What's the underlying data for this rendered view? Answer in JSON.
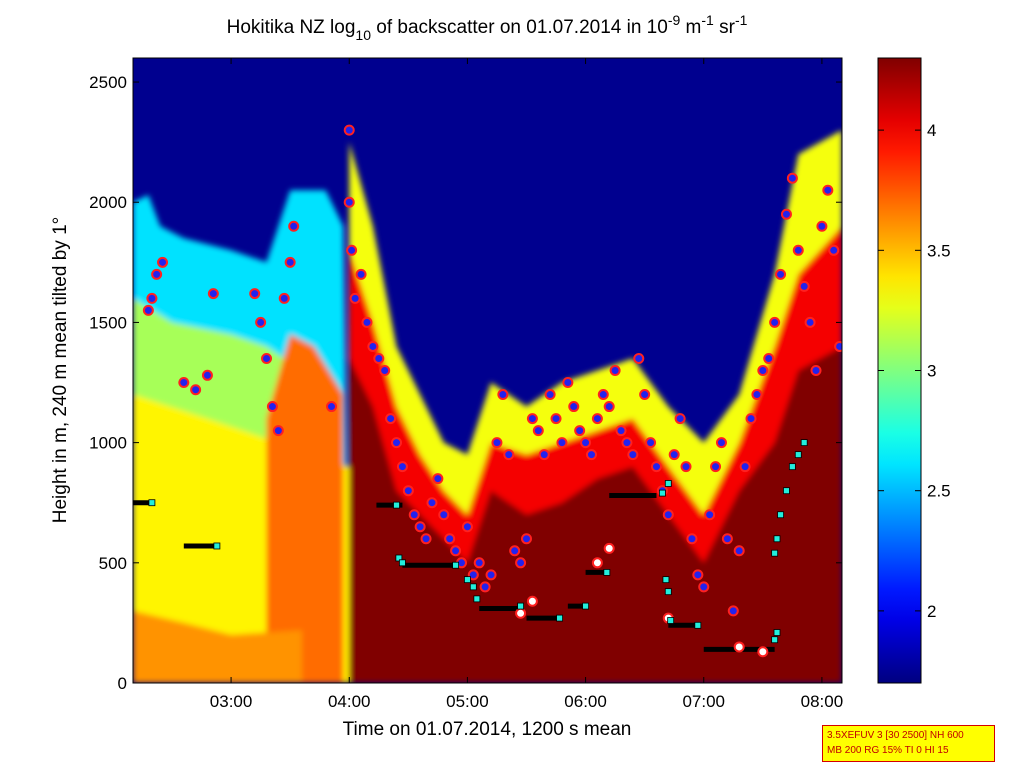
{
  "chart_data": {
    "type": "heatmap",
    "title_parts": {
      "pre": "Hokitika NZ log",
      "sub": "10",
      "mid": " of backscatter on 01.07.2014 in 10",
      "sup1": "-9",
      "unit1": " m",
      "sup2": "-1",
      "unit2": " sr",
      "sup3": "-1"
    },
    "xlabel": "Time on 01.07.2014, 1200 s mean",
    "ylabel": "Height in m, 240 m mean tilted by 1°",
    "xlim_hours": [
      2.17,
      8.17
    ],
    "ylim": [
      0,
      2600
    ],
    "x_ticks": [
      {
        "t": 3,
        "label": "03:00"
      },
      {
        "t": 4,
        "label": "04:00"
      },
      {
        "t": 5,
        "label": "05:00"
      },
      {
        "t": 6,
        "label": "06:00"
      },
      {
        "t": 7,
        "label": "07:00"
      },
      {
        "t": 8,
        "label": "08:00"
      }
    ],
    "y_ticks": [
      {
        "v": 0,
        "label": "0"
      },
      {
        "v": 500,
        "label": "500"
      },
      {
        "v": 1000,
        "label": "1000"
      },
      {
        "v": 1500,
        "label": "1500"
      },
      {
        "v": 2000,
        "label": "2000"
      },
      {
        "v": 2500,
        "label": "2500"
      }
    ],
    "colorbar": {
      "range": [
        1.7,
        4.3
      ],
      "ticks": [
        {
          "v": 2,
          "label": "2"
        },
        {
          "v": 2.5,
          "label": "2.5"
        },
        {
          "v": 3,
          "label": "3"
        },
        {
          "v": 3.5,
          "label": "3.5"
        },
        {
          "v": 4,
          "label": "4"
        }
      ],
      "colormap": "jet"
    },
    "field_regions": [
      {
        "name": "top-background",
        "value": 1.7
      },
      {
        "name": "upper-layer-left",
        "t": [
          2.17,
          4.0
        ],
        "h_top": 1900,
        "value": 2.8
      },
      {
        "name": "lower-layer-left",
        "t": [
          2.17,
          4.0
        ],
        "h_top": 1300,
        "value": 3.3
      },
      {
        "name": "boundary-layer-right",
        "t": [
          4.0,
          8.17
        ],
        "value": 4.3
      }
    ],
    "cloud_base_points": [
      [
        2.3,
        1550
      ],
      [
        2.33,
        1600
      ],
      [
        2.37,
        1700
      ],
      [
        2.42,
        1750
      ],
      [
        2.6,
        1250
      ],
      [
        2.7,
        1220
      ],
      [
        2.8,
        1280
      ],
      [
        2.85,
        1620
      ],
      [
        3.2,
        1620
      ],
      [
        3.25,
        1500
      ],
      [
        3.3,
        1350
      ],
      [
        3.35,
        1150
      ],
      [
        3.4,
        1050
      ],
      [
        3.45,
        1600
      ],
      [
        3.5,
        1750
      ],
      [
        3.53,
        1900
      ],
      [
        3.85,
        1150
      ],
      [
        4.0,
        2300
      ],
      [
        4.0,
        2000
      ],
      [
        4.02,
        1800
      ],
      [
        4.05,
        1600
      ],
      [
        4.1,
        1700
      ],
      [
        4.15,
        1500
      ],
      [
        4.2,
        1400
      ],
      [
        4.25,
        1350
      ],
      [
        4.3,
        1300
      ],
      [
        4.35,
        1100
      ],
      [
        4.4,
        1000
      ],
      [
        4.45,
        900
      ],
      [
        4.5,
        800
      ],
      [
        4.55,
        700
      ],
      [
        4.6,
        650
      ],
      [
        4.65,
        600
      ],
      [
        4.7,
        750
      ],
      [
        4.75,
        850
      ],
      [
        4.8,
        700
      ],
      [
        4.85,
        600
      ],
      [
        4.9,
        550
      ],
      [
        4.95,
        500
      ],
      [
        5.0,
        650
      ],
      [
        5.05,
        450
      ],
      [
        5.1,
        500
      ],
      [
        5.15,
        400
      ],
      [
        5.2,
        450
      ],
      [
        5.25,
        1000
      ],
      [
        5.3,
        1200
      ],
      [
        5.35,
        950
      ],
      [
        5.4,
        550
      ],
      [
        5.45,
        500
      ],
      [
        5.5,
        600
      ],
      [
        5.55,
        1100
      ],
      [
        5.6,
        1050
      ],
      [
        5.65,
        950
      ],
      [
        5.7,
        1200
      ],
      [
        5.75,
        1100
      ],
      [
        5.8,
        1000
      ],
      [
        5.85,
        1250
      ],
      [
        5.9,
        1150
      ],
      [
        5.95,
        1050
      ],
      [
        6.0,
        1000
      ],
      [
        6.05,
        950
      ],
      [
        6.1,
        1100
      ],
      [
        6.15,
        1200
      ],
      [
        6.2,
        1150
      ],
      [
        6.25,
        1300
      ],
      [
        6.3,
        1050
      ],
      [
        6.35,
        1000
      ],
      [
        6.4,
        950
      ],
      [
        6.45,
        1350
      ],
      [
        6.5,
        1200
      ],
      [
        6.55,
        1000
      ],
      [
        6.6,
        900
      ],
      [
        6.65,
        800
      ],
      [
        6.7,
        700
      ],
      [
        6.75,
        950
      ],
      [
        6.8,
        1100
      ],
      [
        6.85,
        900
      ],
      [
        6.9,
        600
      ],
      [
        6.95,
        450
      ],
      [
        7.0,
        400
      ],
      [
        7.05,
        700
      ],
      [
        7.1,
        900
      ],
      [
        7.15,
        1000
      ],
      [
        7.2,
        600
      ],
      [
        7.25,
        300
      ],
      [
        7.3,
        550
      ],
      [
        7.35,
        900
      ],
      [
        7.4,
        1100
      ],
      [
        7.45,
        1200
      ],
      [
        7.5,
        1300
      ],
      [
        7.55,
        1350
      ],
      [
        7.6,
        1500
      ],
      [
        7.65,
        1700
      ],
      [
        7.7,
        1950
      ],
      [
        7.75,
        2100
      ],
      [
        7.8,
        1800
      ],
      [
        7.85,
        1650
      ],
      [
        7.9,
        1500
      ],
      [
        7.95,
        1300
      ],
      [
        8.0,
        1900
      ],
      [
        8.05,
        2050
      ],
      [
        8.1,
        1800
      ],
      [
        8.15,
        1400
      ]
    ],
    "cloud_base_points_white": [
      [
        5.45,
        290
      ],
      [
        5.55,
        340
      ],
      [
        6.1,
        500
      ],
      [
        6.2,
        560
      ],
      [
        6.7,
        270
      ],
      [
        7.3,
        150
      ],
      [
        7.5,
        130
      ]
    ],
    "mixing_layer_segments": [
      {
        "t": [
          2.17,
          2.33
        ],
        "h": 750
      },
      {
        "t": [
          2.6,
          2.9
        ],
        "h": 570
      },
      {
        "t": [
          4.23,
          4.45
        ],
        "h": 740
      },
      {
        "t": [
          4.45,
          4.95
        ],
        "h": 490
      },
      {
        "t": [
          5.1,
          5.45
        ],
        "h": 310
      },
      {
        "t": [
          5.5,
          5.8
        ],
        "h": 270
      },
      {
        "t": [
          5.85,
          6.0
        ],
        "h": 320
      },
      {
        "t": [
          6.0,
          6.2
        ],
        "h": 460
      },
      {
        "t": [
          6.2,
          6.6
        ],
        "h": 780
      },
      {
        "t": [
          6.7,
          6.95
        ],
        "h": 240
      },
      {
        "t": [
          7.0,
          7.6
        ],
        "h": 140
      }
    ],
    "mixing_layer_points_cyan": [
      [
        2.33,
        750
      ],
      [
        2.88,
        570
      ],
      [
        4.4,
        740
      ],
      [
        4.42,
        520
      ],
      [
        4.45,
        500
      ],
      [
        4.9,
        490
      ],
      [
        5.0,
        430
      ],
      [
        5.05,
        400
      ],
      [
        5.08,
        350
      ],
      [
        5.45,
        320
      ],
      [
        5.78,
        270
      ],
      [
        6.0,
        320
      ],
      [
        6.18,
        460
      ],
      [
        6.65,
        790
      ],
      [
        6.7,
        830
      ],
      [
        6.68,
        430
      ],
      [
        6.7,
        380
      ],
      [
        6.72,
        260
      ],
      [
        6.95,
        240
      ],
      [
        7.6,
        180
      ],
      [
        7.62,
        210
      ],
      [
        7.6,
        540
      ],
      [
        7.62,
        600
      ],
      [
        7.65,
        700
      ],
      [
        7.7,
        800
      ],
      [
        7.75,
        900
      ],
      [
        7.8,
        950
      ],
      [
        7.85,
        1000
      ]
    ]
  },
  "info_box": {
    "line1": "3.5XEFUV 3 [30 2500] NH 600",
    "line2": "MB 200 RG 15% TI 0 HI 15"
  },
  "colors": {
    "cloud_point_fill": "#2222ee",
    "cloud_point_edge": "#ff2020",
    "mixing_layer": "#000000",
    "mixing_point": "#22eedd"
  }
}
